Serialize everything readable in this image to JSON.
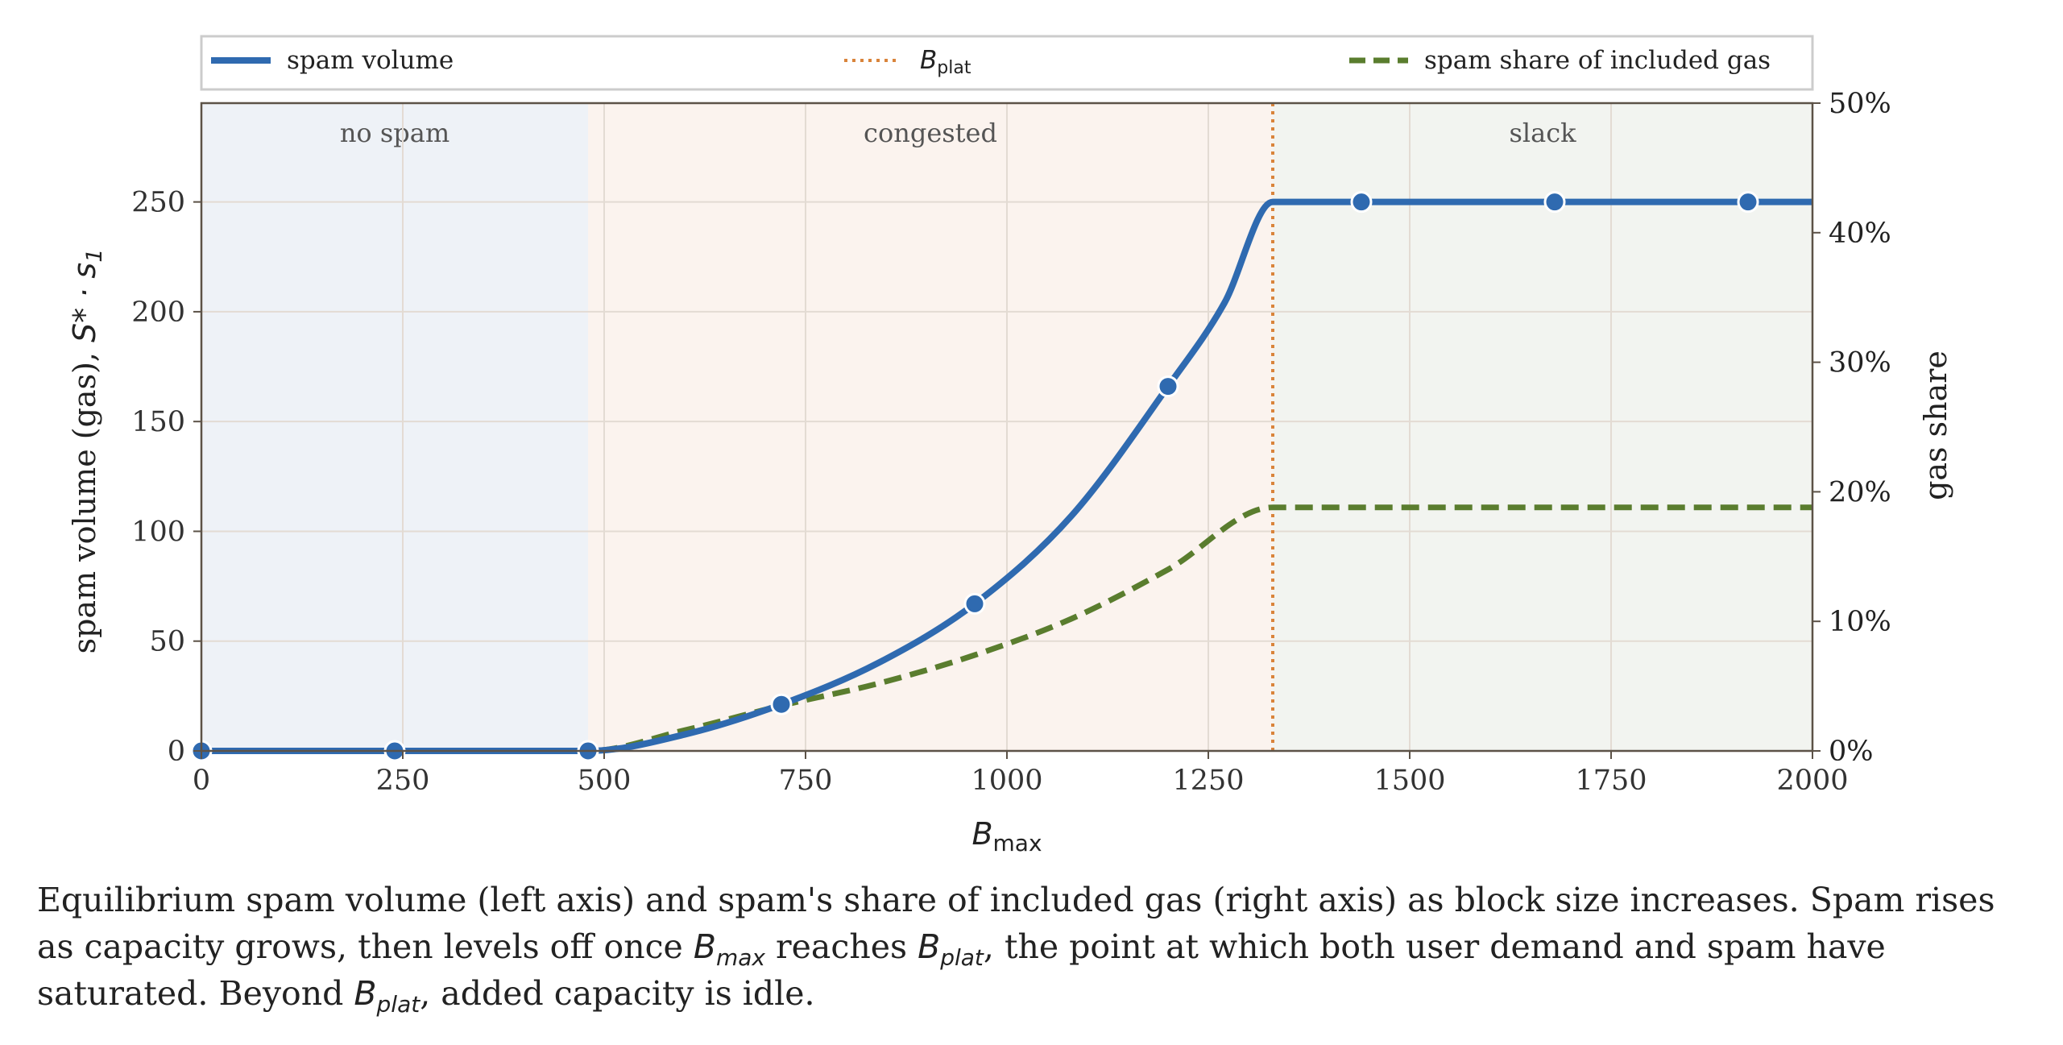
{
  "chart_data": {
    "type": "line",
    "x_axis": {
      "label_main": "B",
      "label_sub": "max",
      "range": [
        0,
        2000
      ],
      "ticks": [
        0,
        250,
        500,
        750,
        1000,
        1250,
        1500,
        1750,
        2000
      ],
      "tick_labels": [
        "0",
        "250",
        "500",
        "750",
        "1000",
        "1250",
        "1500",
        "1750",
        "2000"
      ]
    },
    "y_axis_left": {
      "label_text": "spam volume (gas), ",
      "label_math": "S* · s",
      "label_sub": "1",
      "range": [
        0,
        295
      ],
      "ticks": [
        0,
        50,
        100,
        150,
        200,
        250
      ],
      "tick_labels": [
        "0",
        "50",
        "100",
        "150",
        "200",
        "250"
      ]
    },
    "y_axis_right": {
      "label": "gas share",
      "range_fraction": [
        0,
        0.5
      ],
      "ticks": [
        0,
        0.1,
        0.2,
        0.3,
        0.4,
        0.5
      ],
      "tick_labels": [
        "0%",
        "10%",
        "20%",
        "30%",
        "40%",
        "50%"
      ]
    },
    "grid": true,
    "regions": [
      {
        "label": "no spam",
        "x_start": 0,
        "x_end": 480,
        "color": "#eef2f7"
      },
      {
        "label": "congested",
        "x_start": 480,
        "x_end": 1330,
        "color": "#fbf3ee"
      },
      {
        "label": "slack",
        "x_start": 1330,
        "x_end": 2000,
        "color": "#f2f4f0"
      }
    ],
    "series": [
      {
        "name": "spam volume",
        "axis": "left",
        "style": "solid",
        "color": "#2f6ab0",
        "x": [
          0,
          240,
          480,
          600,
          720,
          840,
          960,
          1080,
          1200,
          1270,
          1330,
          1440,
          1560,
          1680,
          1800,
          1920,
          2000
        ],
        "y": [
          0,
          0,
          0,
          7.5,
          21.2,
          40,
          67,
          107,
          166,
          204,
          250,
          250,
          250,
          250,
          250,
          250,
          250
        ],
        "marker_x": [
          0,
          240,
          480,
          720,
          960,
          1200,
          1440,
          1680,
          1920
        ],
        "marker_y": [
          0,
          0,
          0,
          21.2,
          67,
          166,
          250,
          250,
          250
        ]
      },
      {
        "name": "spam share of included gas",
        "axis": "right",
        "style": "dashed",
        "color": "#5a7d2e",
        "x": [
          0,
          480,
          600,
          720,
          840,
          960,
          1080,
          1200,
          1330,
          1400,
          2000
        ],
        "y": [
          0,
          0,
          0.016,
          0.035,
          0.052,
          0.074,
          0.102,
          0.14,
          0.188,
          0.188,
          0.188
        ]
      },
      {
        "name_main": "B",
        "name_sub": "plat",
        "axis": "vline",
        "style": "dotted",
        "color": "#d9843b",
        "x": 1330
      }
    ],
    "legend": {
      "placement": "top",
      "entries": [
        "spam volume",
        "B_plat",
        "spam share of included gas"
      ]
    }
  },
  "caption": {
    "part1": "Equilibrium spam volume (left axis) and spam's share of included gas (right axis) as block size increases. Spam rises as capacity grows, then levels off once ",
    "b1_main": "B",
    "b1_sub": "max",
    "part2": " reaches ",
    "b2_main": "B",
    "b2_sub": "plat",
    "part3": ", the point at which both user demand and spam have saturated. Beyond ",
    "b3_main": "B",
    "b3_sub": "plat",
    "part4": ", added capacity is idle."
  }
}
